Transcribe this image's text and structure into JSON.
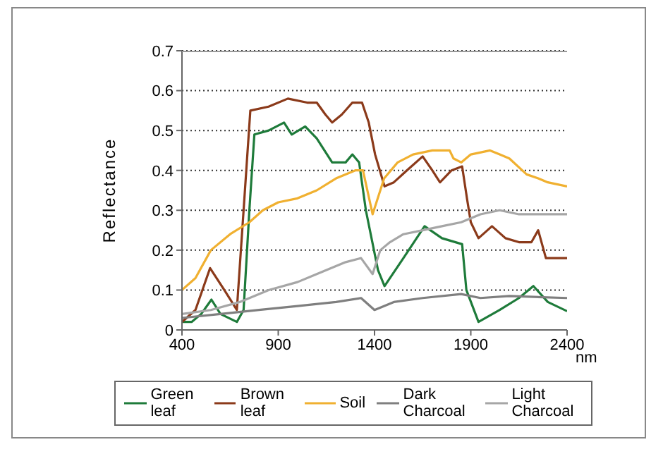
{
  "chart_data": {
    "type": "line",
    "xlabel": "nm",
    "ylabel": "Reflectance",
    "xlim": [
      400,
      2400
    ],
    "xticks": [
      400,
      900,
      1400,
      1900,
      2400
    ],
    "ylim": [
      0,
      0.7
    ],
    "yticks": [
      0,
      0.1,
      0.2,
      0.3,
      0.4,
      0.5,
      0.6,
      0.7
    ],
    "grid": "y",
    "legend": "bottom",
    "marker": "none",
    "line_style": "solid",
    "series": [
      {
        "name": "Green leaf",
        "color": "#1e7b3a",
        "x": [
          400,
          450,
          500,
          553,
          600,
          685,
          720,
          750,
          776,
          850,
          930,
          970,
          1040,
          1100,
          1180,
          1250,
          1285,
          1320,
          1355,
          1418,
          1452,
          1550,
          1660,
          1750,
          1855,
          1877,
          1940,
          2050,
          2150,
          2225,
          2300,
          2400
        ],
        "values": [
          0.02,
          0.02,
          0.04,
          0.076,
          0.04,
          0.02,
          0.05,
          0.3,
          0.49,
          0.5,
          0.52,
          0.49,
          0.51,
          0.48,
          0.42,
          0.42,
          0.44,
          0.42,
          0.3,
          0.15,
          0.11,
          0.18,
          0.26,
          0.23,
          0.215,
          0.1,
          0.02,
          0.05,
          0.08,
          0.11,
          0.07,
          0.047
        ]
      },
      {
        "name": "Brown leaf",
        "color": "#8b3a1a",
        "x": [
          400,
          470,
          546,
          620,
          685,
          720,
          755,
          850,
          950,
          1050,
          1100,
          1145,
          1180,
          1230,
          1285,
          1335,
          1370,
          1403,
          1452,
          1500,
          1568,
          1650,
          1700,
          1740,
          1800,
          1855,
          1880,
          1900,
          1940,
          2010,
          2080,
          2150,
          2215,
          2250,
          2290,
          2400
        ],
        "values": [
          0.02,
          0.05,
          0.155,
          0.1,
          0.05,
          0.3,
          0.55,
          0.56,
          0.58,
          0.57,
          0.57,
          0.54,
          0.52,
          0.54,
          0.57,
          0.57,
          0.52,
          0.44,
          0.36,
          0.37,
          0.4,
          0.435,
          0.4,
          0.37,
          0.4,
          0.41,
          0.33,
          0.27,
          0.23,
          0.26,
          0.23,
          0.22,
          0.22,
          0.25,
          0.18,
          0.18
        ]
      },
      {
        "name": "Soil",
        "color": "#f0b030",
        "x": [
          400,
          470,
          550,
          650,
          750,
          820,
          900,
          1000,
          1100,
          1200,
          1300,
          1340,
          1390,
          1450,
          1520,
          1600,
          1700,
          1790,
          1810,
          1850,
          1900,
          2000,
          2050,
          2100,
          2190,
          2250,
          2300,
          2400
        ],
        "values": [
          0.1,
          0.13,
          0.2,
          0.24,
          0.27,
          0.3,
          0.32,
          0.33,
          0.35,
          0.38,
          0.4,
          0.4,
          0.29,
          0.38,
          0.42,
          0.44,
          0.45,
          0.45,
          0.43,
          0.42,
          0.44,
          0.45,
          0.44,
          0.43,
          0.39,
          0.38,
          0.37,
          0.36
        ]
      },
      {
        "name": "Dark Charcoal",
        "color": "#7f7f7f",
        "x": [
          400,
          600,
          800,
          1000,
          1200,
          1330,
          1400,
          1500,
          1650,
          1850,
          1950,
          2100,
          2400
        ],
        "values": [
          0.03,
          0.04,
          0.05,
          0.06,
          0.07,
          0.08,
          0.05,
          0.07,
          0.08,
          0.09,
          0.08,
          0.085,
          0.08
        ]
      },
      {
        "name": "Light Charcoal",
        "color": "#a6a6a6",
        "x": [
          400,
          550,
          700,
          850,
          1000,
          1100,
          1250,
          1330,
          1390,
          1430,
          1480,
          1550,
          1650,
          1750,
          1850,
          1950,
          2050,
          2150,
          2250,
          2400
        ],
        "values": [
          0.04,
          0.05,
          0.07,
          0.1,
          0.12,
          0.14,
          0.17,
          0.18,
          0.14,
          0.2,
          0.22,
          0.24,
          0.25,
          0.26,
          0.27,
          0.29,
          0.3,
          0.29,
          0.29,
          0.29
        ]
      }
    ]
  }
}
